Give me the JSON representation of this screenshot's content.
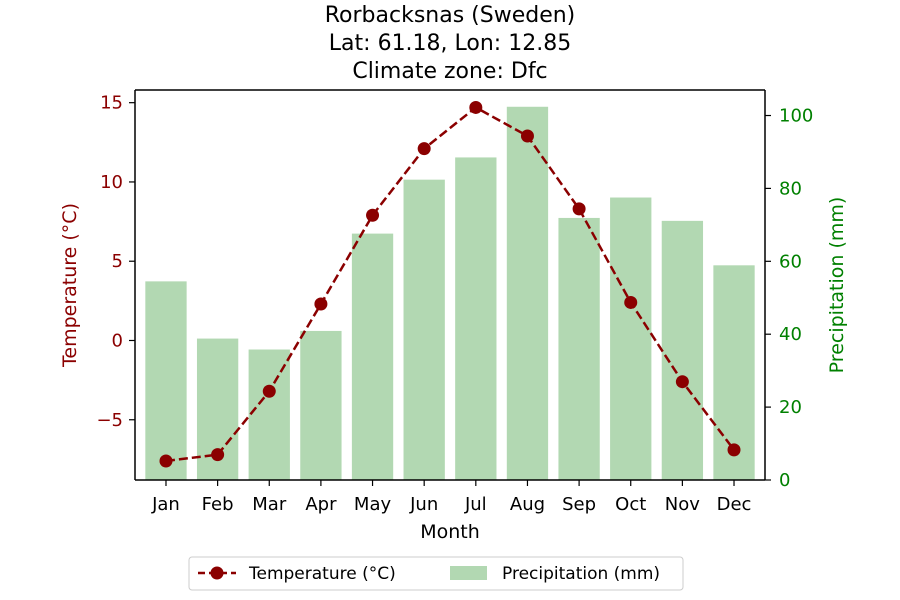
{
  "chart_data": {
    "type": "bar+line",
    "title_lines": [
      "Rorbacksnas (Sweden)",
      "Lat: 61.18, Lon: 12.85",
      "Climate zone: Dfc"
    ],
    "xlabel": "Month",
    "categories": [
      "Jan",
      "Feb",
      "Mar",
      "Apr",
      "May",
      "Jun",
      "Jul",
      "Aug",
      "Sep",
      "Oct",
      "Nov",
      "Dec"
    ],
    "left_axis": {
      "label": "Temperature (°C)",
      "color": "#8b0000",
      "ylim": [
        -8.8,
        15.8
      ],
      "ticks": [
        -5,
        0,
        5,
        10,
        15
      ],
      "tick_labels": [
        "−5",
        "0",
        "5",
        "10",
        "15"
      ]
    },
    "right_axis": {
      "label": "Precipitation (mm)",
      "color": "#008000",
      "ylim": [
        0,
        107
      ],
      "ticks": [
        0,
        20,
        40,
        60,
        80,
        100
      ],
      "tick_labels": [
        "0",
        "20",
        "40",
        "60",
        "80",
        "100"
      ]
    },
    "series": [
      {
        "name": "Temperature (°C)",
        "type": "line",
        "axis": "left",
        "color": "#8b0000",
        "values": [
          -7.6,
          -7.2,
          -3.2,
          2.3,
          7.9,
          12.1,
          14.7,
          12.9,
          8.3,
          2.4,
          -2.6,
          -6.9
        ]
      },
      {
        "name": "Precipitation (mm)",
        "type": "bar",
        "axis": "right",
        "color": "#b2d8b2",
        "values": [
          54.5,
          38.8,
          35.8,
          40.9,
          67.6,
          82.4,
          88.5,
          102.4,
          71.9,
          77.5,
          71.1,
          58.9
        ]
      }
    ],
    "legend": {
      "placement": "bottom-center"
    },
    "grid": false
  }
}
